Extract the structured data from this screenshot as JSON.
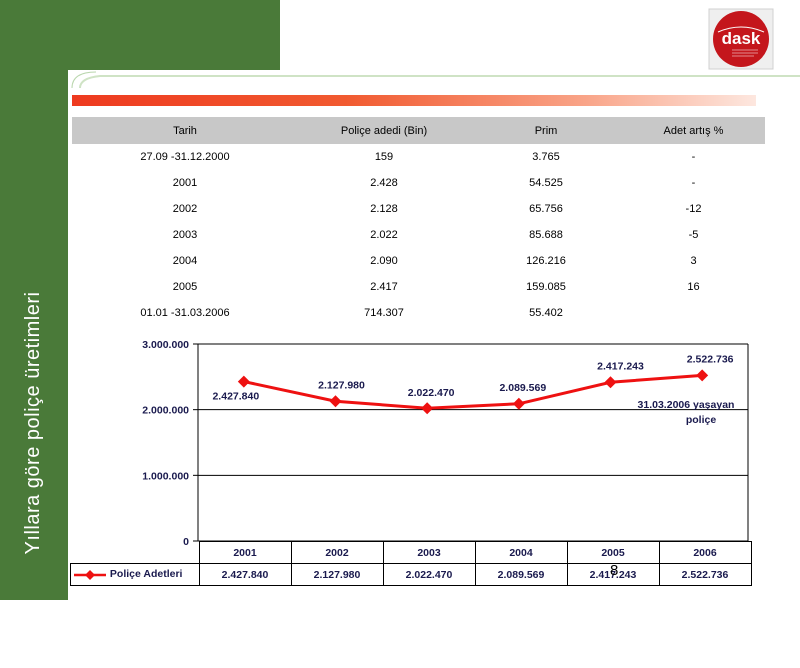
{
  "slide": {
    "title": "Yıllara göre poliçe üretimleri",
    "page_number": "8"
  },
  "logo": {
    "text": "dask"
  },
  "table": {
    "headers": [
      "Tarih",
      "Poliçe adedi (Bin)",
      "Prim",
      "Adet artış %"
    ],
    "rows": [
      [
        "27.09 -31.12.2000",
        "159",
        "3.765",
        "-"
      ],
      [
        "2001",
        "2.428",
        "54.525",
        "-"
      ],
      [
        "2002",
        "2.128",
        "65.756",
        "-12"
      ],
      [
        "2003",
        "2.022",
        "85.688",
        "-5"
      ],
      [
        "2004",
        "2.090",
        "126.216",
        "3"
      ],
      [
        "2005",
        "2.417",
        "159.085",
        "16"
      ],
      [
        "01.01 -31.03.2006",
        "714.307",
        "55.402",
        ""
      ]
    ]
  },
  "chart_data": {
    "type": "line",
    "categories": [
      "2001",
      "2002",
      "2003",
      "2004",
      "2005",
      "2006"
    ],
    "series": [
      {
        "name": "Poliçe Adetleri",
        "values": [
          2427840,
          2127980,
          2022470,
          2089569,
          2417243,
          2522736
        ],
        "labels": [
          "2.427.840",
          "2.127.980",
          "2.022.470",
          "2.089.569",
          "2.417.243",
          "2.522.736"
        ],
        "color": "#ee1111"
      }
    ],
    "yticks": [
      "3.000.000",
      "2.000.000",
      "1.000.000",
      "0"
    ],
    "ylim": [
      0,
      3000000
    ],
    "annotation": "31.03.2006 yaşayan poliçe",
    "grid": true,
    "legend": "bottom-left data table"
  }
}
